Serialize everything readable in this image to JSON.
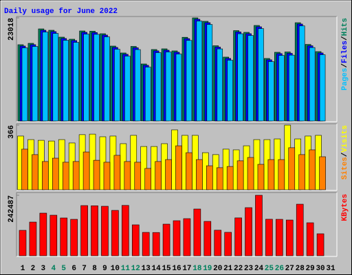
{
  "chart_data": {
    "type": "bar",
    "title": "Daily usage for June 2022",
    "categories": [
      "1",
      "2",
      "3",
      "4",
      "5",
      "6",
      "7",
      "8",
      "9",
      "10",
      "11",
      "12",
      "13",
      "14",
      "15",
      "16",
      "17",
      "18",
      "19",
      "20",
      "21",
      "22",
      "23",
      "24",
      "25",
      "26",
      "27",
      "28",
      "29",
      "30",
      "31"
    ],
    "category_colors": [
      "#000000",
      "#000000",
      "#000000",
      "#00805c",
      "#00805c",
      "#000000",
      "#000000",
      "#000000",
      "#000000",
      "#000000",
      "#00805c",
      "#00805c",
      "#000000",
      "#000000",
      "#000000",
      "#000000",
      "#000000",
      "#00805c",
      "#00805c",
      "#000000",
      "#000000",
      "#000000",
      "#000000",
      "#000000",
      "#00805c",
      "#00805c",
      "#000000",
      "#000000",
      "#000000",
      "#000000",
      "#000000"
    ],
    "legend_separator": "/",
    "panels": [
      {
        "ylim": [
          0,
          23018
        ],
        "yticks": [
          23018
        ],
        "series": [
          {
            "name": "Hits",
            "color": "#00805c",
            "values": [
              17033,
              17340,
              20563,
              20255,
              18721,
              18261,
              20102,
              20050,
              19488,
              16726,
              15192,
              16650,
              12736,
              15959,
              16112,
              15652,
              18690,
              23018,
              22250,
              16800,
              14271,
              20180,
              19795,
              21330,
              13964,
              15345,
              15410,
              21943,
              17100,
              15498,
              null
            ]
          },
          {
            "name": "Files",
            "color": "#0000ff",
            "values": [
              16733,
              17040,
              20263,
              19955,
              18421,
              17961,
              19802,
              19750,
              19188,
              16426,
              14892,
              16350,
              12436,
              15659,
              15812,
              15352,
              18390,
              22718,
              21950,
              16500,
              13971,
              19880,
              19495,
              21030,
              13664,
              15045,
              15110,
              21643,
              16800,
              15198,
              null
            ]
          },
          {
            "name": "Pages",
            "color": "#00c0ff",
            "values": [
              16333,
              16640,
              19863,
              19555,
              18021,
              17561,
              19402,
              19350,
              18788,
              16026,
              14492,
              15950,
              12036,
              15259,
              15412,
              14952,
              17990,
              22318,
              21550,
              16100,
              13571,
              19480,
              19095,
              20630,
              13264,
              14645,
              14710,
              21243,
              16400,
              14798,
              null
            ]
          }
        ]
      },
      {
        "ylim": [
          0,
          366
        ],
        "yticks": [
          366
        ],
        "series": [
          {
            "name": "Visits",
            "color": "#ffff00",
            "values": [
              304,
              284,
              280,
              276,
              284,
              265,
              312,
              315,
              300,
              304,
              261,
              308,
              245,
              245,
              261,
              339,
              308,
              308,
              210,
              199,
              230,
              226,
              249,
              284,
              284,
              288,
              366,
              288,
              304,
              308,
              null
            ]
          },
          {
            "name": "Sites",
            "color": "#ff8000",
            "values": [
              230,
              199,
              160,
              179,
              156,
              160,
              214,
              167,
              156,
              195,
              160,
              156,
              121,
              160,
              171,
              249,
              210,
              171,
              136,
              125,
              132,
              164,
              183,
              144,
              171,
              171,
              238,
              199,
              226,
              187,
              null
            ]
          }
        ]
      },
      {
        "ylim": [
          0,
          242487
        ],
        "yticks": [
          242487
        ],
        "series": [
          {
            "name": "KBytes",
            "color": "#ff0000",
            "values": [
              101935,
              134995,
              170810,
              162545,
              151525,
              146015,
              201115,
              200400,
              198360,
              181830,
              201800,
              123975,
              93670,
              93200,
              126730,
              140505,
              148770,
              187340,
              137750,
              102400,
              93900,
              151800,
              192850,
              242487,
              146300,
              146015,
              143260,
              206625,
              132240,
              88160,
              null
            ]
          }
        ]
      }
    ]
  }
}
